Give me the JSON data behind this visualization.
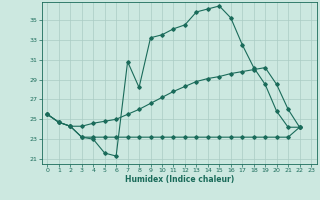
{
  "xlabel": "Humidex (Indice chaleur)",
  "background_color": "#cce8e0",
  "grid_color": "#aaccC4",
  "line_color": "#1a6b5a",
  "xlim": [
    -0.5,
    23.5
  ],
  "ylim": [
    20.5,
    36.8
  ],
  "yticks": [
    21,
    23,
    25,
    27,
    29,
    31,
    33,
    35
  ],
  "xticks": [
    0,
    1,
    2,
    3,
    4,
    5,
    6,
    7,
    8,
    9,
    10,
    11,
    12,
    13,
    14,
    15,
    16,
    17,
    18,
    19,
    20,
    21,
    22,
    23
  ],
  "line1_x": [
    0,
    1,
    2,
    3,
    4,
    5,
    6,
    7,
    8,
    9,
    10,
    11,
    12,
    13,
    14,
    15,
    16,
    17,
    18,
    19,
    20,
    21,
    22
  ],
  "line1_y": [
    25.5,
    24.7,
    24.3,
    23.2,
    23.0,
    21.6,
    21.3,
    30.8,
    28.2,
    33.2,
    33.5,
    34.1,
    34.5,
    35.8,
    36.1,
    36.4,
    35.2,
    32.5,
    30.2,
    28.5,
    25.8,
    24.2,
    24.2
  ],
  "line2_x": [
    0,
    1,
    2,
    3,
    4,
    5,
    6,
    7,
    8,
    9,
    10,
    11,
    12,
    13,
    14,
    15,
    16,
    17,
    18,
    19,
    20,
    21,
    22
  ],
  "line2_y": [
    25.5,
    24.7,
    24.3,
    23.2,
    23.2,
    23.2,
    23.2,
    23.2,
    23.2,
    23.2,
    23.2,
    23.2,
    23.2,
    23.2,
    23.2,
    23.2,
    23.2,
    23.2,
    23.2,
    23.2,
    23.2,
    23.2,
    24.2
  ],
  "line3_x": [
    0,
    1,
    2,
    3,
    4,
    5,
    6,
    7,
    8,
    9,
    10,
    11,
    12,
    13,
    14,
    15,
    16,
    17,
    18,
    19,
    20,
    21,
    22
  ],
  "line3_y": [
    25.5,
    24.7,
    24.3,
    24.3,
    24.6,
    24.8,
    25.0,
    25.5,
    26.0,
    26.6,
    27.2,
    27.8,
    28.3,
    28.8,
    29.1,
    29.3,
    29.6,
    29.8,
    30.0,
    30.2,
    28.5,
    26.0,
    24.2
  ]
}
